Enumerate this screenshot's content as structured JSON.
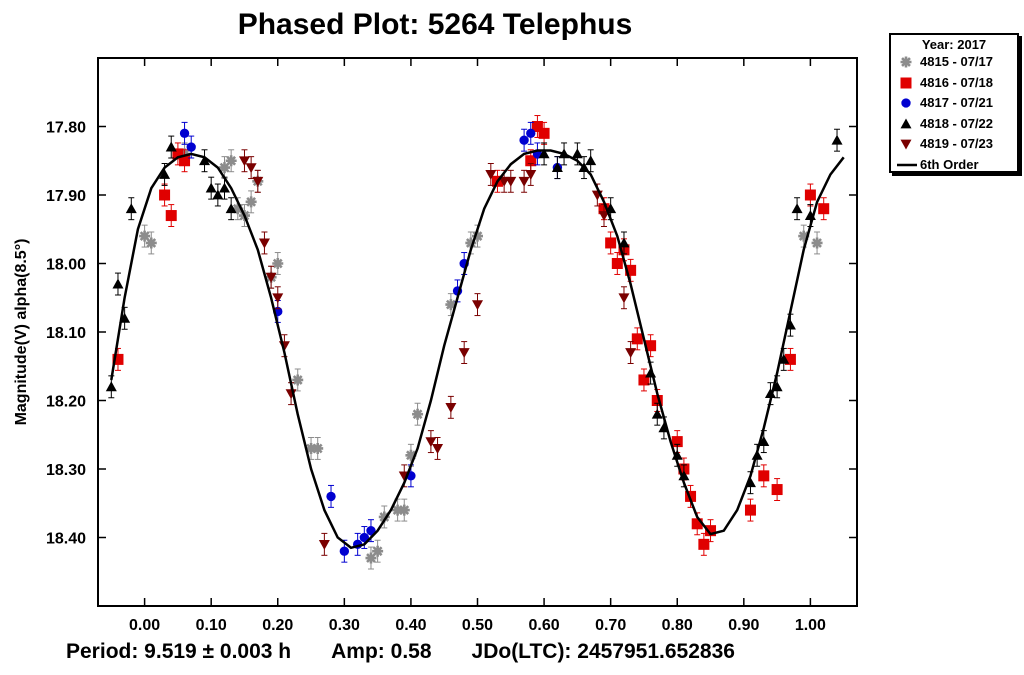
{
  "chart_data": {
    "type": "scatter",
    "title": "Phased Plot: 5264 Telephus",
    "xlabel": "",
    "ylabel": "Magnitude(V) alpha(8.5°)",
    "xlim": [
      -0.07,
      1.07
    ],
    "ylim": [
      18.5,
      17.7
    ],
    "y_inverted": true,
    "x_ticks": [
      "0.00",
      "0.10",
      "0.20",
      "0.30",
      "0.40",
      "0.50",
      "0.60",
      "0.70",
      "0.80",
      "0.90",
      "1.00"
    ],
    "y_ticks": [
      "17.80",
      "17.90",
      "18.00",
      "18.10",
      "18.20",
      "18.30",
      "18.40"
    ],
    "legend": {
      "title": "Year: 2017",
      "position": "top-right outside"
    },
    "series": [
      {
        "name": "4815 - 07/17",
        "marker": "asterisk",
        "color": "#8c8c8c",
        "points": [
          [
            0.0,
            17.96
          ],
          [
            0.01,
            17.97
          ],
          [
            0.06,
            17.84
          ],
          [
            0.12,
            17.86
          ],
          [
            0.13,
            17.85
          ],
          [
            0.14,
            17.92
          ],
          [
            0.15,
            17.93
          ],
          [
            0.16,
            17.91
          ],
          [
            0.17,
            17.88
          ],
          [
            0.19,
            18.02
          ],
          [
            0.2,
            18.0
          ],
          [
            0.23,
            18.17
          ],
          [
            0.25,
            18.27
          ],
          [
            0.26,
            18.27
          ],
          [
            0.34,
            18.43
          ],
          [
            0.35,
            18.42
          ],
          [
            0.36,
            18.37
          ],
          [
            0.38,
            18.36
          ],
          [
            0.39,
            18.36
          ],
          [
            0.4,
            18.28
          ],
          [
            0.41,
            18.22
          ],
          [
            0.46,
            18.06
          ],
          [
            0.49,
            17.97
          ],
          [
            0.5,
            17.96
          ],
          [
            0.99,
            17.96
          ],
          [
            1.01,
            17.97
          ]
        ]
      },
      {
        "name": "4816 - 07/18",
        "marker": "square",
        "color": "#e00000",
        "points": [
          [
            -0.04,
            18.14
          ],
          [
            0.03,
            17.9
          ],
          [
            0.04,
            17.93
          ],
          [
            0.05,
            17.84
          ],
          [
            0.06,
            17.85
          ],
          [
            0.53,
            17.88
          ],
          [
            0.58,
            17.85
          ],
          [
            0.59,
            17.8
          ],
          [
            0.6,
            17.81
          ],
          [
            0.69,
            17.92
          ],
          [
            0.7,
            17.97
          ],
          [
            0.71,
            18.0
          ],
          [
            0.72,
            17.98
          ],
          [
            0.73,
            18.01
          ],
          [
            0.74,
            18.11
          ],
          [
            0.75,
            18.17
          ],
          [
            0.76,
            18.12
          ],
          [
            0.77,
            18.2
          ],
          [
            0.8,
            18.26
          ],
          [
            0.81,
            18.3
          ],
          [
            0.82,
            18.34
          ],
          [
            0.83,
            18.38
          ],
          [
            0.84,
            18.41
          ],
          [
            0.85,
            18.39
          ],
          [
            0.91,
            18.36
          ],
          [
            0.93,
            18.31
          ],
          [
            0.95,
            18.33
          ],
          [
            0.97,
            18.14
          ],
          [
            1.0,
            17.9
          ],
          [
            1.02,
            17.92
          ]
        ]
      },
      {
        "name": "4817 - 07/21",
        "marker": "circle",
        "color": "#0000d0",
        "points": [
          [
            0.06,
            17.81
          ],
          [
            0.07,
            17.83
          ],
          [
            0.2,
            18.07
          ],
          [
            0.28,
            18.34
          ],
          [
            0.3,
            18.42
          ],
          [
            0.32,
            18.41
          ],
          [
            0.33,
            18.4
          ],
          [
            0.34,
            18.39
          ],
          [
            0.4,
            18.31
          ],
          [
            0.47,
            18.04
          ],
          [
            0.48,
            18.0
          ],
          [
            0.57,
            17.82
          ],
          [
            0.58,
            17.81
          ],
          [
            0.59,
            17.84
          ],
          [
            0.62,
            17.86
          ]
        ]
      },
      {
        "name": "4818 - 07/22",
        "marker": "triangle-up",
        "color": "#000000",
        "points": [
          [
            -0.05,
            18.18
          ],
          [
            -0.04,
            18.03
          ],
          [
            -0.03,
            18.08
          ],
          [
            -0.02,
            17.92
          ],
          [
            0.03,
            17.87
          ],
          [
            0.04,
            17.83
          ],
          [
            0.09,
            17.85
          ],
          [
            0.1,
            17.89
          ],
          [
            0.11,
            17.9
          ],
          [
            0.12,
            17.89
          ],
          [
            0.13,
            17.92
          ],
          [
            0.6,
            17.84
          ],
          [
            0.62,
            17.86
          ],
          [
            0.63,
            17.84
          ],
          [
            0.65,
            17.84
          ],
          [
            0.66,
            17.86
          ],
          [
            0.67,
            17.85
          ],
          [
            0.7,
            17.92
          ],
          [
            0.72,
            17.97
          ],
          [
            0.76,
            18.16
          ],
          [
            0.77,
            18.22
          ],
          [
            0.78,
            18.24
          ],
          [
            0.8,
            18.28
          ],
          [
            0.81,
            18.31
          ],
          [
            0.91,
            18.32
          ],
          [
            0.92,
            18.28
          ],
          [
            0.93,
            18.26
          ],
          [
            0.94,
            18.19
          ],
          [
            0.95,
            18.18
          ],
          [
            0.96,
            18.14
          ],
          [
            0.97,
            18.09
          ],
          [
            0.98,
            17.92
          ],
          [
            1.0,
            17.93
          ],
          [
            1.04,
            17.82
          ]
        ]
      },
      {
        "name": "4819 - 07/23",
        "marker": "triangle-down",
        "color": "#7a0000",
        "points": [
          [
            0.15,
            17.85
          ],
          [
            0.16,
            17.86
          ],
          [
            0.17,
            17.88
          ],
          [
            0.18,
            17.97
          ],
          [
            0.19,
            18.02
          ],
          [
            0.2,
            18.05
          ],
          [
            0.21,
            18.12
          ],
          [
            0.22,
            18.19
          ],
          [
            0.27,
            18.41
          ],
          [
            0.39,
            18.31
          ],
          [
            0.43,
            18.26
          ],
          [
            0.44,
            18.27
          ],
          [
            0.46,
            18.21
          ],
          [
            0.48,
            18.13
          ],
          [
            0.5,
            18.06
          ],
          [
            0.52,
            17.87
          ],
          [
            0.54,
            17.88
          ],
          [
            0.55,
            17.88
          ],
          [
            0.57,
            17.88
          ],
          [
            0.58,
            17.87
          ],
          [
            0.68,
            17.9
          ],
          [
            0.69,
            17.93
          ],
          [
            0.72,
            18.05
          ],
          [
            0.73,
            18.13
          ]
        ]
      }
    ],
    "fit": {
      "name": "6th Order",
      "color": "#000000",
      "points": [
        [
          -0.05,
          18.17
        ],
        [
          -0.03,
          18.05
        ],
        [
          -0.01,
          17.95
        ],
        [
          0.01,
          17.89
        ],
        [
          0.03,
          17.86
        ],
        [
          0.05,
          17.845
        ],
        [
          0.07,
          17.84
        ],
        [
          0.09,
          17.845
        ],
        [
          0.11,
          17.86
        ],
        [
          0.13,
          17.89
        ],
        [
          0.15,
          17.93
        ],
        [
          0.17,
          17.98
        ],
        [
          0.19,
          18.05
        ],
        [
          0.21,
          18.13
        ],
        [
          0.23,
          18.22
        ],
        [
          0.25,
          18.3
        ],
        [
          0.27,
          18.36
        ],
        [
          0.29,
          18.4
        ],
        [
          0.31,
          18.415
        ],
        [
          0.33,
          18.41
        ],
        [
          0.35,
          18.39
        ],
        [
          0.37,
          18.36
        ],
        [
          0.39,
          18.32
        ],
        [
          0.41,
          18.27
        ],
        [
          0.43,
          18.2
        ],
        [
          0.45,
          18.12
        ],
        [
          0.47,
          18.05
        ],
        [
          0.49,
          17.98
        ],
        [
          0.51,
          17.92
        ],
        [
          0.53,
          17.88
        ],
        [
          0.55,
          17.855
        ],
        [
          0.57,
          17.84
        ],
        [
          0.59,
          17.835
        ],
        [
          0.61,
          17.835
        ],
        [
          0.63,
          17.84
        ],
        [
          0.65,
          17.85
        ],
        [
          0.67,
          17.87
        ],
        [
          0.69,
          17.91
        ],
        [
          0.71,
          17.96
        ],
        [
          0.73,
          18.03
        ],
        [
          0.75,
          18.11
        ],
        [
          0.77,
          18.19
        ],
        [
          0.79,
          18.26
        ],
        [
          0.81,
          18.32
        ],
        [
          0.83,
          18.37
        ],
        [
          0.85,
          18.395
        ],
        [
          0.87,
          18.39
        ],
        [
          0.89,
          18.36
        ],
        [
          0.91,
          18.31
        ],
        [
          0.93,
          18.24
        ],
        [
          0.95,
          18.16
        ],
        [
          0.97,
          18.07
        ],
        [
          0.99,
          17.98
        ],
        [
          1.01,
          17.91
        ],
        [
          1.03,
          17.87
        ],
        [
          1.05,
          17.845
        ]
      ]
    }
  },
  "footer": {
    "period": "Period: 9.519 ± 0.003 h",
    "amp": "Amp: 0.58",
    "jdo": "JDo(LTC): 2457951.652836"
  }
}
